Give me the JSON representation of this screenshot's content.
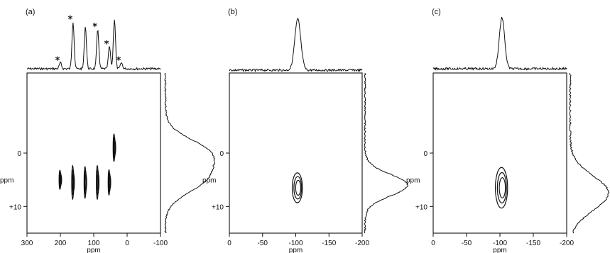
{
  "chart_data": [
    {
      "type": "contour",
      "panel_label": "(a)",
      "xlabel": "ppm",
      "x_ticks": [
        "300",
        "200",
        "100",
        "0",
        "-100"
      ],
      "xlim": [
        300,
        -100
      ],
      "ylabel": "ppm",
      "y_ticks": [
        "0",
        "+10"
      ],
      "ylim": [
        -15,
        15
      ],
      "top_projection_peaks": [
        {
          "x": 200,
          "height": 0.12,
          "sideband": true
        },
        {
          "x": 162,
          "height": 0.95,
          "sideband": true
        },
        {
          "x": 125,
          "height": 0.85,
          "sideband": false
        },
        {
          "x": 88,
          "height": 0.8,
          "sideband": true
        },
        {
          "x": 53,
          "height": 0.45,
          "sideband": true
        },
        {
          "x": 38,
          "height": 1.0,
          "sideband": false
        },
        {
          "x": 17,
          "height": 0.12,
          "sideband": true
        }
      ],
      "side_projection_peaks": [
        {
          "y": 0,
          "height": 1.0
        },
        {
          "y": 5,
          "height": 0.85
        }
      ],
      "contours": [
        {
          "x": 200,
          "y": 5,
          "rx": 2,
          "ry": 1.8
        },
        {
          "x": 162,
          "y": 5.5,
          "rx": 5,
          "ry": 3.2
        },
        {
          "x": 125,
          "y": 5.5,
          "rx": 5,
          "ry": 3.0
        },
        {
          "x": 88,
          "y": 5.5,
          "rx": 5,
          "ry": 3.2
        },
        {
          "x": 53,
          "y": 5.5,
          "rx": 4,
          "ry": 2.4
        },
        {
          "x": 38,
          "y": -1,
          "rx": 4.5,
          "ry": 2.6
        }
      ],
      "sideband_marker": "*"
    },
    {
      "type": "contour",
      "panel_label": "(b)",
      "xlabel": "ppm",
      "x_ticks": [
        "0",
        "-50",
        "-100",
        "-150",
        "-200"
      ],
      "xlim": [
        0,
        -200
      ],
      "ylabel": "ppm",
      "y_ticks": [
        "0",
        "+10"
      ],
      "ylim": [
        -15,
        15
      ],
      "top_projection_peaks": [
        {
          "x": -103,
          "height": 1.0
        }
      ],
      "side_projection_peaks": [
        {
          "y": 6,
          "height": 1.0
        }
      ],
      "contours": [
        {
          "x": -103,
          "y": 6.5,
          "rx": 11,
          "ry": 2.8
        }
      ]
    },
    {
      "type": "contour",
      "panel_label": "(c)",
      "xlabel": "ppm",
      "x_ticks": [
        "0",
        "-50",
        "-100",
        "-150",
        "-200"
      ],
      "xlim": [
        0,
        -200
      ],
      "ylabel": "ppm",
      "y_ticks": [
        "0",
        "+10"
      ],
      "ylim": [
        -15,
        15
      ],
      "top_projection_peaks": [
        {
          "x": -103,
          "height": 1.0
        }
      ],
      "side_projection_peaks": [
        {
          "y": 7.5,
          "height": 1.0
        }
      ],
      "contours": [
        {
          "x": -103,
          "y": 6.5,
          "rx": 13,
          "ry": 3.8
        }
      ]
    }
  ]
}
